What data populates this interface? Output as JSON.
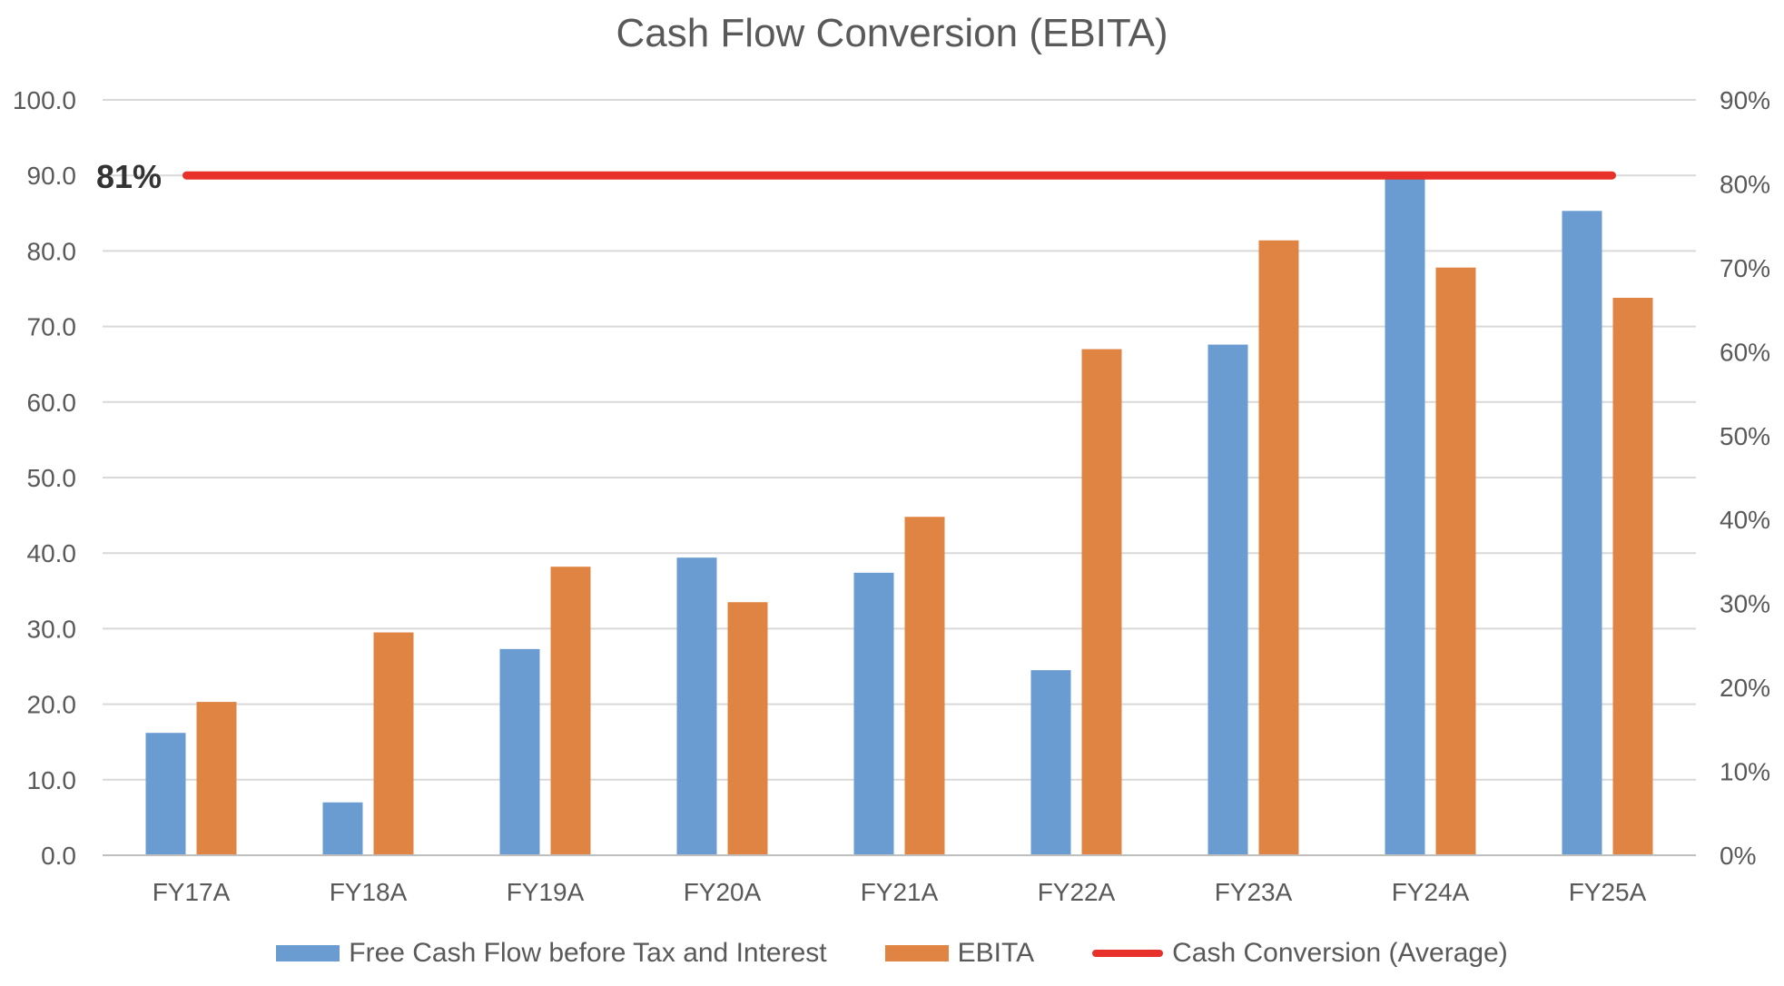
{
  "chart_data": {
    "type": "bar",
    "title": "Cash Flow Conversion (EBITA)",
    "categories": [
      "FY17A",
      "FY18A",
      "FY19A",
      "FY20A",
      "FY21A",
      "FY22A",
      "FY23A",
      "FY24A",
      "FY25A"
    ],
    "series": [
      {
        "name": "Free Cash Flow before Tax and Interest",
        "type": "bar",
        "axis": "left",
        "color": "#6A9BD1",
        "values": [
          16.2,
          7.0,
          27.3,
          39.4,
          37.4,
          24.5,
          67.6,
          90.0,
          85.3
        ]
      },
      {
        "name": "EBITA",
        "type": "bar",
        "axis": "left",
        "color": "#E08443",
        "values": [
          20.3,
          29.5,
          38.2,
          33.5,
          44.8,
          67.0,
          81.4,
          77.8,
          73.8
        ]
      },
      {
        "name": "Cash Conversion (Average)",
        "type": "line",
        "axis": "right",
        "color": "#E8312A",
        "value": 0.81
      }
    ],
    "average_label": "81%",
    "y_left": {
      "ylim": [
        0,
        100
      ],
      "ticks": [
        "0.0",
        "10.0",
        "20.0",
        "30.0",
        "40.0",
        "50.0",
        "60.0",
        "70.0",
        "80.0",
        "90.0",
        "100.0"
      ]
    },
    "y_right": {
      "ylim": [
        0,
        0.9
      ],
      "ticks": [
        "0%",
        "10%",
        "20%",
        "30%",
        "40%",
        "50%",
        "60%",
        "70%",
        "80%",
        "90%"
      ]
    },
    "grid": true,
    "legend": "bottom",
    "gridline_color": "#D9D9D9"
  }
}
